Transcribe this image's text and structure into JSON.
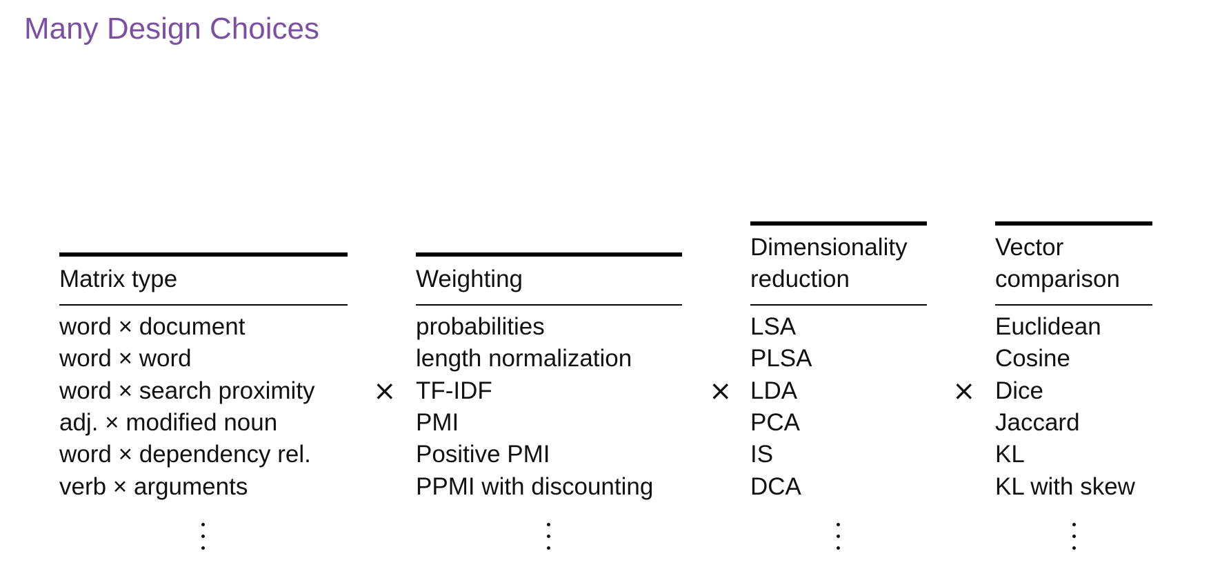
{
  "title": "Many Design Choices",
  "operator": "×",
  "columns": [
    {
      "header": [
        "Matrix type"
      ],
      "items": [
        "word × document",
        "word × word",
        "word × search proximity",
        "adj. × modified noun",
        "word × dependency rel.",
        "verb × arguments"
      ],
      "ellipsis": "⋮"
    },
    {
      "header": [
        "Weighting"
      ],
      "items": [
        "probabilities",
        "length normalization",
        "TF-IDF",
        "PMI",
        "Positive PMI",
        "PPMI with discounting"
      ],
      "ellipsis": "⋮"
    },
    {
      "header": [
        "Dimensionality",
        "reduction"
      ],
      "items": [
        "LSA",
        "PLSA",
        "LDA",
        "PCA",
        "IS",
        "DCA"
      ],
      "ellipsis": "⋮"
    },
    {
      "header": [
        "Vector",
        "comparison"
      ],
      "items": [
        "Euclidean",
        "Cosine",
        "Dice",
        "Jaccard",
        "KL",
        "KL with skew"
      ],
      "ellipsis": "⋮"
    }
  ]
}
